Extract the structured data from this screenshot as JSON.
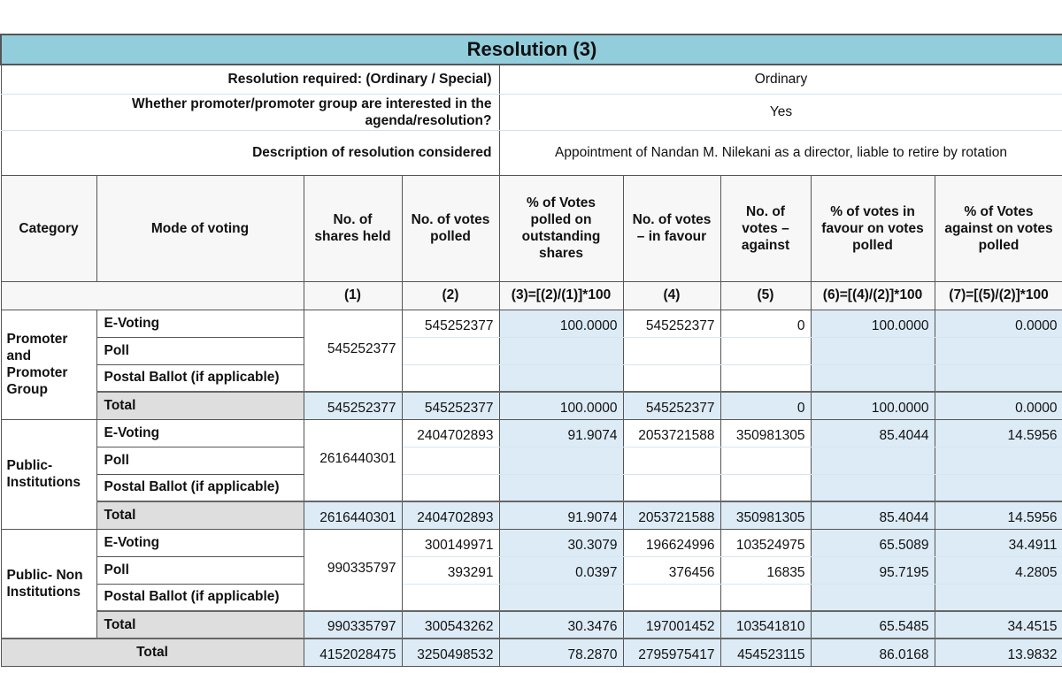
{
  "title": "Resolution (3)",
  "info": [
    {
      "label": "Resolution required: (Ordinary / Special)",
      "value": "Ordinary"
    },
    {
      "label": "Whether promoter/promoter group are interested in the agenda/resolution?",
      "value": "Yes"
    },
    {
      "label": "Description of resolution considered",
      "value": "Appointment of Nandan M. Nilekani as a director, liable to retire by rotation"
    }
  ],
  "headers": [
    "Category",
    "Mode of voting",
    "No. of shares held",
    "No. of votes polled",
    "% of Votes polled on outstanding shares",
    "No. of votes – in favour",
    "No. of votes – against",
    "% of votes in favour on votes polled",
    "% of Votes against on votes polled"
  ],
  "formulas": [
    "(1)",
    "(2)",
    "(3)=[(2)/(1)]*100",
    "(4)",
    "(5)",
    "(6)=[(4)/(2)]*100",
    "(7)=[(5)/(2)]*100"
  ],
  "groups": [
    {
      "category": "Promoter and Promoter Group",
      "shares_held": "545252377",
      "rows": [
        {
          "mode": "E-Voting",
          "votes_polled": "545252377",
          "pct_polled": "100.0000",
          "favour": "545252377",
          "against": "0",
          "pct_favour": "100.0000",
          "pct_against": "0.0000"
        },
        {
          "mode": "Poll",
          "votes_polled": "",
          "pct_polled": "",
          "favour": "",
          "against": "",
          "pct_favour": "",
          "pct_against": ""
        },
        {
          "mode": "Postal Ballot (if applicable)",
          "votes_polled": "",
          "pct_polled": "",
          "favour": "",
          "against": "",
          "pct_favour": "",
          "pct_against": ""
        }
      ],
      "total": {
        "label": "Total",
        "shares_held": "545252377",
        "votes_polled": "545252377",
        "pct_polled": "100.0000",
        "favour": "545252377",
        "against": "0",
        "pct_favour": "100.0000",
        "pct_against": "0.0000"
      }
    },
    {
      "category": "Public- Institutions",
      "shares_held": "2616440301",
      "rows": [
        {
          "mode": "E-Voting",
          "votes_polled": "2404702893",
          "pct_polled": "91.9074",
          "favour": "2053721588",
          "against": "350981305",
          "pct_favour": "85.4044",
          "pct_against": "14.5956"
        },
        {
          "mode": "Poll",
          "votes_polled": "",
          "pct_polled": "",
          "favour": "",
          "against": "",
          "pct_favour": "",
          "pct_against": ""
        },
        {
          "mode": "Postal Ballot (if applicable)",
          "votes_polled": "",
          "pct_polled": "",
          "favour": "",
          "against": "",
          "pct_favour": "",
          "pct_against": ""
        }
      ],
      "total": {
        "label": "Total",
        "shares_held": "2616440301",
        "votes_polled": "2404702893",
        "pct_polled": "91.9074",
        "favour": "2053721588",
        "against": "350981305",
        "pct_favour": "85.4044",
        "pct_against": "14.5956"
      }
    },
    {
      "category": "Public- Non Institutions",
      "shares_held": "990335797",
      "rows": [
        {
          "mode": "E-Voting",
          "votes_polled": "300149971",
          "pct_polled": "30.3079",
          "favour": "196624996",
          "against": "103524975",
          "pct_favour": "65.5089",
          "pct_against": "34.4911"
        },
        {
          "mode": "Poll",
          "votes_polled": "393291",
          "pct_polled": "0.0397",
          "favour": "376456",
          "against": "16835",
          "pct_favour": "95.7195",
          "pct_against": "4.2805"
        },
        {
          "mode": "Postal Ballot (if applicable)",
          "votes_polled": "",
          "pct_polled": "",
          "favour": "",
          "against": "",
          "pct_favour": "",
          "pct_against": ""
        }
      ],
      "total": {
        "label": "Total",
        "shares_held": "990335797",
        "votes_polled": "300543262",
        "pct_polled": "30.3476",
        "favour": "197001452",
        "against": "103541810",
        "pct_favour": "65.5485",
        "pct_against": "34.4515"
      }
    }
  ],
  "grand_total": {
    "label": "Total",
    "shares_held": "4152028475",
    "votes_polled": "3250498532",
    "pct_polled": "78.2870",
    "favour": "2795975417",
    "against": "454523115",
    "pct_favour": "86.0168",
    "pct_against": "13.9832"
  },
  "colors": {
    "title_bg": "#92cddc",
    "computed_cell_bg": "#dcebf6",
    "total_label_bg": "#dedede"
  }
}
